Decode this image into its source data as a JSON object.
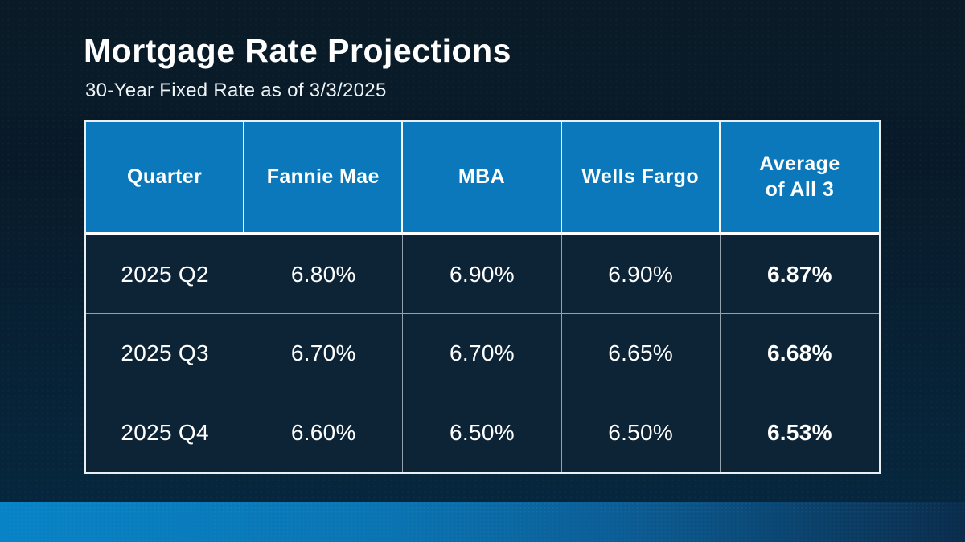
{
  "slide": {
    "title": "Mortgage Rate Projections",
    "subtitle": "30-Year Fixed Rate as of 3/3/2025"
  },
  "table": {
    "headers": [
      "Quarter",
      "Fannie Mae",
      "MBA",
      "Wells Fargo",
      "Average\nof All 3"
    ],
    "rows": [
      {
        "cells": [
          "2025 Q2",
          "6.80%",
          "6.90%",
          "6.90%",
          "6.87%"
        ]
      },
      {
        "cells": [
          "2025 Q3",
          "6.70%",
          "6.70%",
          "6.65%",
          "6.68%"
        ]
      },
      {
        "cells": [
          "2025 Q4",
          "6.60%",
          "6.50%",
          "6.50%",
          "6.53%"
        ]
      }
    ]
  },
  "colors": {
    "background_top": "#0a1b27",
    "background_bottom": "#062840",
    "header_blue": "#0a78ba",
    "cell_background": "#0c2436",
    "grid_line": "#94a2ad",
    "outer_border": "#e9eef2",
    "text": "#ffffff",
    "band_left": "#0783c6",
    "band_right": "#0a2c4c"
  },
  "chart_data": {
    "type": "table",
    "title": "Mortgage Rate Projections",
    "subtitle": "30-Year Fixed Rate as of 3/3/2025",
    "unit": "%",
    "categories": [
      "2025 Q2",
      "2025 Q3",
      "2025 Q4"
    ],
    "series": [
      {
        "name": "Fannie Mae",
        "values": [
          6.8,
          6.7,
          6.6
        ]
      },
      {
        "name": "MBA",
        "values": [
          6.9,
          6.7,
          6.5
        ]
      },
      {
        "name": "Wells Fargo",
        "values": [
          6.9,
          6.65,
          6.5
        ]
      },
      {
        "name": "Average of All 3",
        "values": [
          6.87,
          6.68,
          6.53
        ]
      }
    ]
  }
}
